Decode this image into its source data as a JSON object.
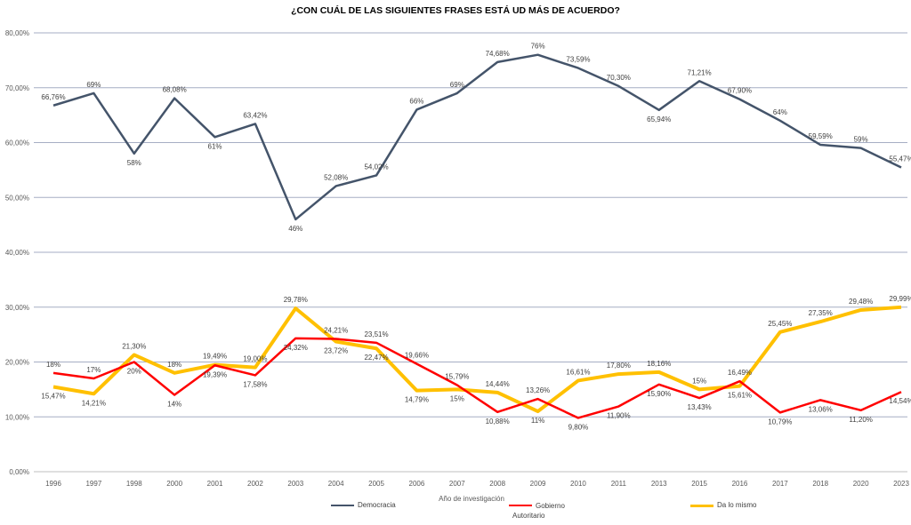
{
  "chart_data": {
    "type": "line",
    "title": "¿CON CUÁL DE LAS SIGUIENTES FRASES ESTÁ UD MÁS DE ACUERDO?",
    "xlabel": "Año de investigación",
    "ylabel": "",
    "ylim": [
      0,
      80
    ],
    "yticks": [
      "0,00%",
      "10,00%",
      "20,00%",
      "30,00%",
      "40,00%",
      "50,00%",
      "60,00%",
      "70,00%",
      "80,00%"
    ],
    "grid": true,
    "legend": "bottom",
    "categories": [
      "1996",
      "1997",
      "1998",
      "2000",
      "2001",
      "2002",
      "2003",
      "2004",
      "2005",
      "2006",
      "2007",
      "2008",
      "2009",
      "2010",
      "2011",
      "2013",
      "2015",
      "2016",
      "2017",
      "2018",
      "2020",
      "2023"
    ],
    "series": [
      {
        "name": "Democracia",
        "color": "#44546A",
        "values": [
          66.76,
          69,
          58,
          68.08,
          61,
          63.42,
          46,
          52.08,
          54.02,
          66,
          69,
          74.68,
          76,
          73.59,
          70.3,
          65.94,
          71.21,
          67.9,
          64,
          59.59,
          59,
          55.47
        ],
        "labels": [
          "66,76%",
          "69%",
          "58%",
          "68,08%",
          "61%",
          "63,42%",
          "46%",
          "52,08%",
          "54,02%",
          "66%",
          "69%",
          "74,68%",
          "76%",
          "73,59%",
          "70,30%",
          "65,94%",
          "71,21%",
          "67,90%",
          "64%",
          "59,59%",
          "59%",
          "55,47%"
        ]
      },
      {
        "name": "Gobierno Autoritario",
        "color": "#FF0000",
        "values": [
          18,
          17,
          20,
          14,
          19.39,
          17.58,
          24.32,
          24.21,
          23.51,
          19.66,
          15.79,
          10.88,
          13.26,
          9.8,
          11.9,
          15.9,
          13.43,
          16.49,
          10.79,
          13.06,
          11.2,
          14.54
        ],
        "labels": [
          "18%",
          "17%",
          "20%",
          "14%",
          "19,39%",
          "17,58%",
          "24,32%",
          "24,21%",
          "23,51%",
          "19,66%",
          "15,79%",
          "10,88%",
          "13,26%",
          "9,80%",
          "11,90%",
          "15,90%",
          "13,43%",
          "16,49%",
          "10,79%",
          "13,06%",
          "11,20%",
          "14,54%"
        ]
      },
      {
        "name": "Da lo mismo",
        "color": "#FFC000",
        "values": [
          15.47,
          14.21,
          21.3,
          18,
          19.49,
          19.0,
          29.78,
          23.72,
          22.47,
          14.79,
          15,
          14.44,
          11,
          16.61,
          17.8,
          18.16,
          15,
          15.61,
          25.45,
          27.35,
          29.48,
          29.99
        ],
        "labels": [
          "15,47%",
          "14,21%",
          "21,30%",
          "18%",
          "19,49%",
          "19,00%",
          "29,78%",
          "23,72%",
          "22,47%",
          "14,79%",
          "15%",
          "14,44%",
          "11%",
          "16,61%",
          "17,80%",
          "18,16%",
          "15%",
          "15,61%",
          "25,45%",
          "27,35%",
          "29,48%",
          "29,99%"
        ]
      }
    ]
  },
  "legend": {
    "democracia": "Democracia",
    "autoritario_line1": "Gobierno",
    "autoritario_line2": "Autoritario",
    "da_lo_mismo": "Da lo mismo"
  }
}
